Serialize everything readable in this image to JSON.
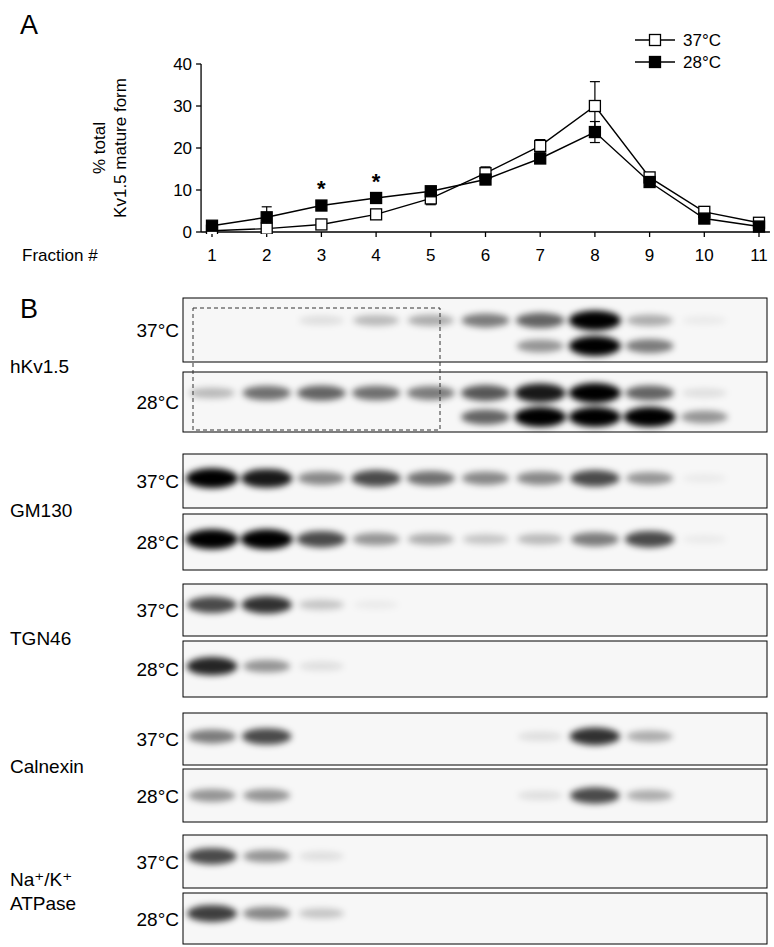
{
  "chart_data": {
    "type": "line",
    "panel_label": "A",
    "y_label_lines": [
      "% total",
      "Kv1.5 mature form"
    ],
    "x_label": "Fraction #",
    "x": [
      1,
      2,
      3,
      4,
      5,
      6,
      7,
      8,
      9,
      10,
      11
    ],
    "xlim": [
      0.8,
      11.2
    ],
    "xticks": [
      1,
      2,
      3,
      4,
      5,
      6,
      7,
      8,
      9,
      10,
      11
    ],
    "ylim": [
      0,
      40
    ],
    "yticks": [
      0,
      10,
      20,
      30,
      40
    ],
    "legend": "upper-right",
    "grid": false,
    "series": [
      {
        "name": "37°C",
        "color": "#000000",
        "marker": "open-square",
        "line_style": "solid",
        "values": [
          0.3,
          0.8,
          1.8,
          4.2,
          8.0,
          14.0,
          20.5,
          30.0,
          13.0,
          4.8,
          2.2
        ],
        "errors": [
          0.5,
          0.6,
          0.6,
          0.8,
          1.5,
          1.5,
          1.5,
          5.8,
          1.0,
          0.5,
          0.4
        ]
      },
      {
        "name": "28°C",
        "color": "#000000",
        "marker": "filled-square",
        "line_style": "solid",
        "values": [
          1.5,
          3.5,
          6.3,
          8.1,
          9.7,
          12.5,
          17.5,
          23.8,
          11.9,
          3.2,
          1.3
        ],
        "errors": [
          0.5,
          2.5,
          0.8,
          0.8,
          1.0,
          1.2,
          1.0,
          2.5,
          0.8,
          0.5,
          0.3
        ]
      }
    ],
    "annotations": [
      {
        "text": "*",
        "x": 3
      },
      {
        "text": "*",
        "x": 4
      }
    ]
  },
  "panel_b": {
    "label": "B",
    "blots": [
      {
        "protein_lines": [
          "hKv1.5"
        ],
        "conditions": [
          "37°C",
          "28°C"
        ]
      },
      {
        "protein_lines": [
          "GM130"
        ],
        "conditions": [
          "37°C",
          "28°C"
        ]
      },
      {
        "protein_lines": [
          "TGN46"
        ],
        "conditions": [
          "37°C",
          "28°C"
        ]
      },
      {
        "protein_lines": [
          "Calnexin"
        ],
        "conditions": [
          "37°C",
          "28°C"
        ]
      },
      {
        "protein_lines": [
          "Na⁺/K⁺",
          "ATPase"
        ],
        "conditions": [
          "37°C",
          "28°C"
        ]
      }
    ]
  }
}
